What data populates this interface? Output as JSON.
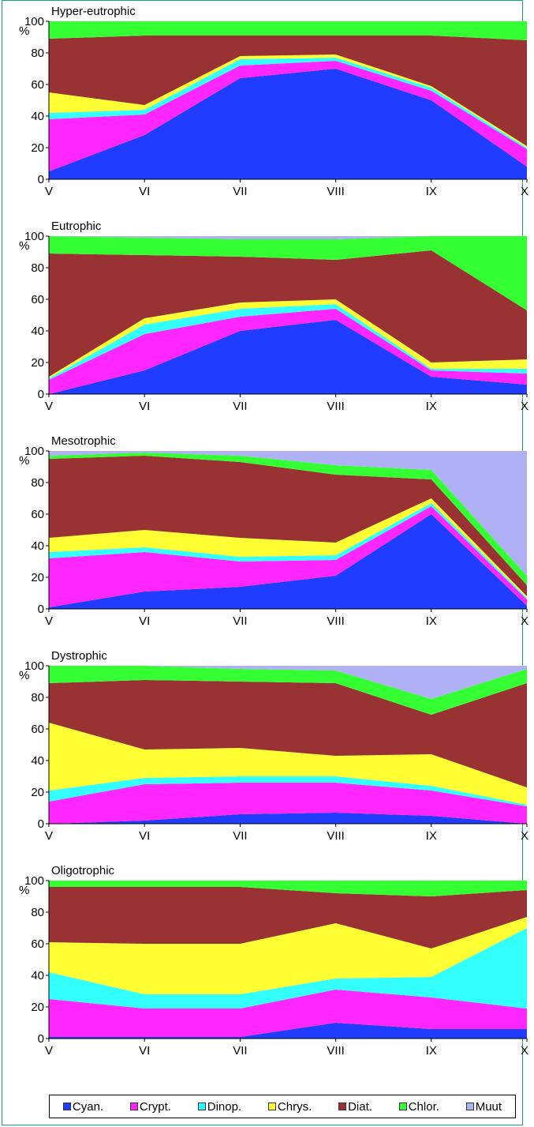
{
  "colors": {
    "Cyan.": "#1f3cff",
    "Crypt.": "#ff26ff",
    "Dinop.": "#33ffff",
    "Chrys.": "#ffff33",
    "Diat.": "#993333",
    "Chlor.": "#33ff33",
    "Muut": "#b0b0f5"
  },
  "legend": [
    "Cyan.",
    "Crypt.",
    "Dinop.",
    "Chrys.",
    "Diat.",
    "Chlor.",
    "Muut"
  ],
  "chart_data": [
    {
      "type": "area",
      "stacked": true,
      "title": "Hyper-eutrophic",
      "ylabel": "%",
      "categories": [
        "V",
        "VI",
        "VII",
        "VIII",
        "IX",
        "X"
      ],
      "yticks": [
        0,
        20,
        40,
        60,
        80,
        100
      ],
      "ylim": [
        0,
        100
      ],
      "series": [
        {
          "name": "Cyan.",
          "values": [
            5,
            28,
            64,
            70,
            50,
            8
          ]
        },
        {
          "name": "Crypt.",
          "values": [
            33,
            13,
            8,
            5,
            6,
            11
          ]
        },
        {
          "name": "Dinop.",
          "values": [
            4,
            3,
            4,
            2,
            2,
            1
          ]
        },
        {
          "name": "Chrys.",
          "values": [
            13,
            3,
            2,
            2,
            1,
            1
          ]
        },
        {
          "name": "Diat.",
          "values": [
            34,
            44,
            13,
            12,
            32,
            67
          ]
        },
        {
          "name": "Chlor.",
          "values": [
            11,
            9,
            9,
            9,
            9,
            12
          ]
        },
        {
          "name": "Muut",
          "values": [
            0,
            0,
            0,
            0,
            0,
            0
          ]
        }
      ]
    },
    {
      "type": "area",
      "stacked": true,
      "title": "Eutrophic",
      "ylabel": "%",
      "categories": [
        "V",
        "VI",
        "VII",
        "VIII",
        "IX",
        "X"
      ],
      "yticks": [
        0,
        20,
        40,
        60,
        80,
        100
      ],
      "ylim": [
        0,
        100
      ],
      "series": [
        {
          "name": "Cyan.",
          "values": [
            0,
            15,
            40,
            47,
            11,
            6
          ]
        },
        {
          "name": "Crypt.",
          "values": [
            9,
            23,
            9,
            7,
            4,
            7
          ]
        },
        {
          "name": "Dinop.",
          "values": [
            1,
            6,
            5,
            3,
            1,
            3
          ]
        },
        {
          "name": "Chrys.",
          "values": [
            1,
            4,
            4,
            3,
            4,
            6
          ]
        },
        {
          "name": "Diat.",
          "values": [
            78,
            40,
            29,
            25,
            71,
            31
          ]
        },
        {
          "name": "Chlor.",
          "values": [
            11,
            11,
            11,
            13,
            9,
            47
          ]
        },
        {
          "name": "Muut",
          "values": [
            0,
            1,
            2,
            2,
            0,
            0
          ]
        }
      ]
    },
    {
      "type": "area",
      "stacked": true,
      "title": "Mesotrophic",
      "ylabel": "%",
      "categories": [
        "V",
        "VI",
        "VII",
        "VIII",
        "IX",
        "X"
      ],
      "yticks": [
        0,
        20,
        40,
        60,
        80,
        100
      ],
      "ylim": [
        0,
        100
      ],
      "series": [
        {
          "name": "Cyan.",
          "values": [
            1,
            11,
            14,
            21,
            60,
            2
          ]
        },
        {
          "name": "Crypt.",
          "values": [
            31,
            25,
            16,
            10,
            5,
            4
          ]
        },
        {
          "name": "Dinop.",
          "values": [
            4,
            3,
            3,
            3,
            2,
            1
          ]
        },
        {
          "name": "Chrys.",
          "values": [
            9,
            11,
            12,
            8,
            3,
            1
          ]
        },
        {
          "name": "Diat.",
          "values": [
            50,
            47,
            48,
            43,
            12,
            7
          ]
        },
        {
          "name": "Chlor.",
          "values": [
            2,
            2,
            4,
            6,
            6,
            6
          ]
        },
        {
          "name": "Muut",
          "values": [
            3,
            1,
            3,
            9,
            12,
            79
          ]
        }
      ]
    },
    {
      "type": "area",
      "stacked": true,
      "title": "Dystrophic",
      "ylabel": "%",
      "categories": [
        "V",
        "VI",
        "VII",
        "VIII",
        "IX",
        "X"
      ],
      "yticks": [
        0,
        20,
        40,
        60,
        80,
        100
      ],
      "ylim": [
        0,
        100
      ],
      "series": [
        {
          "name": "Cyan.",
          "values": [
            0,
            2,
            6,
            7,
            5,
            0
          ]
        },
        {
          "name": "Crypt.",
          "values": [
            14,
            23,
            20,
            19,
            16,
            11
          ]
        },
        {
          "name": "Dinop.",
          "values": [
            7,
            4,
            4,
            4,
            3,
            1
          ]
        },
        {
          "name": "Chrys.",
          "values": [
            43,
            18,
            18,
            13,
            20,
            11
          ]
        },
        {
          "name": "Diat.",
          "values": [
            25,
            44,
            42,
            46,
            25,
            66
          ]
        },
        {
          "name": "Chlor.",
          "values": [
            11,
            9,
            8,
            8,
            10,
            9
          ]
        },
        {
          "name": "Muut",
          "values": [
            0,
            0,
            2,
            3,
            21,
            2
          ]
        }
      ]
    },
    {
      "type": "area",
      "stacked": true,
      "title": "Oligotrophic",
      "ylabel": "%",
      "categories": [
        "V",
        "VI",
        "VII",
        "VIII",
        "IX",
        "X"
      ],
      "yticks": [
        0,
        20,
        40,
        60,
        80,
        100
      ],
      "ylim": [
        0,
        100
      ],
      "series": [
        {
          "name": "Cyan.",
          "values": [
            1,
            1,
            1,
            10,
            6,
            6
          ]
        },
        {
          "name": "Crypt.",
          "values": [
            24,
            18,
            18,
            21,
            20,
            13
          ]
        },
        {
          "name": "Dinop.",
          "values": [
            17,
            9,
            9,
            7,
            13,
            51
          ]
        },
        {
          "name": "Chrys.",
          "values": [
            19,
            32,
            32,
            35,
            18,
            7
          ]
        },
        {
          "name": "Diat.",
          "values": [
            35,
            36,
            36,
            19,
            33,
            17
          ]
        },
        {
          "name": "Chlor.",
          "values": [
            4,
            4,
            4,
            8,
            10,
            6
          ]
        },
        {
          "name": "Muut",
          "values": [
            0,
            0,
            0,
            0,
            0,
            0
          ]
        }
      ]
    }
  ]
}
